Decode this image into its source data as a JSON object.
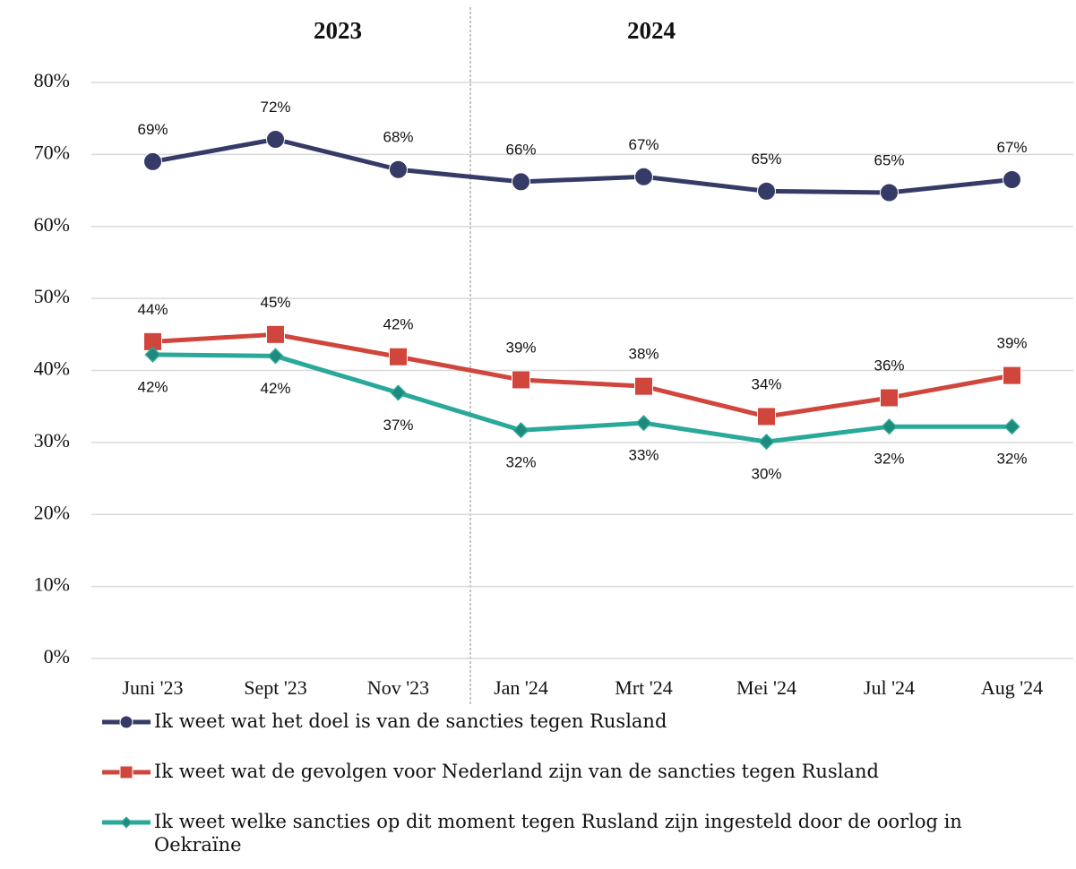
{
  "chart_data": {
    "type": "line",
    "annotations": [
      "2023",
      "2024"
    ],
    "categories": [
      "Juni '23",
      "Sept '23",
      "Nov '23",
      "Jan '24",
      "Mrt '24",
      "Mei '24",
      "Jul '24",
      "Aug '24"
    ],
    "series": [
      {
        "name": "Ik weet wat het doel is van de sancties tegen Rusland",
        "color": "#363a66",
        "marker": "circle",
        "values": [
          69.0,
          72.1,
          67.9,
          66.2,
          66.9,
          64.9,
          64.7,
          66.5
        ],
        "value_labels": [
          "69%",
          "72%",
          "68%",
          "66%",
          "67%",
          "65%",
          "65%",
          "67%"
        ]
      },
      {
        "name": "Ik weet wat de gevolgen voor Nederland zijn van de sancties tegen Rusland",
        "color": "#d0463d",
        "marker": "square",
        "values": [
          44.0,
          45.0,
          41.9,
          38.7,
          37.8,
          33.6,
          36.2,
          39.3
        ],
        "value_labels": [
          "44%",
          "45%",
          "42%",
          "39%",
          "38%",
          "34%",
          "36%",
          "39%"
        ]
      },
      {
        "name": "Ik weet welke sancties op dit moment tegen Rusland zijn ingesteld door de oorlog in Oekraïne",
        "color": "#2aa89a",
        "marker": "diamond",
        "values": [
          42.2,
          42.0,
          36.9,
          31.7,
          32.7,
          30.1,
          32.2,
          32.2
        ],
        "value_labels": [
          "42%",
          "42%",
          "37%",
          "32%",
          "33%",
          "30%",
          "32%",
          "32%"
        ]
      }
    ],
    "ylim": [
      0,
      80
    ],
    "yticks": [
      {
        "value": 0,
        "label": "0%"
      },
      {
        "value": 10,
        "label": "10%"
      },
      {
        "value": 20,
        "label": "20%"
      },
      {
        "value": 30,
        "label": "30%"
      },
      {
        "value": 40,
        "label": "40%"
      },
      {
        "value": 50,
        "label": "50%"
      },
      {
        "value": 60,
        "label": "60%"
      },
      {
        "value": 70,
        "label": "70%"
      },
      {
        "value": 80,
        "label": "80%"
      }
    ],
    "grid": true
  }
}
